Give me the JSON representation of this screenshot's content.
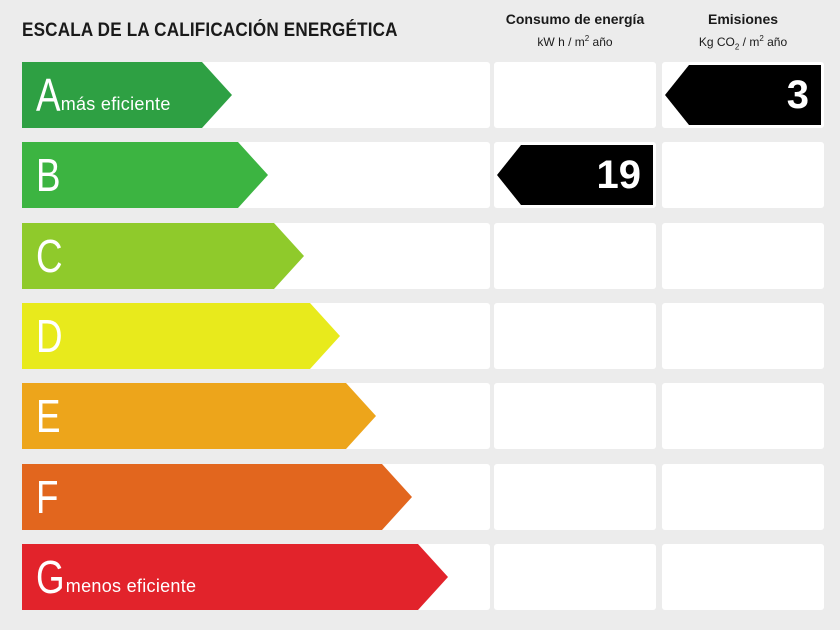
{
  "title": "ESCALA DE LA CALIFICACIÓN ENERGÉTICA",
  "columns": {
    "consumo": {
      "title": "Consumo de energía",
      "unit_pre": "kW h / m",
      "unit_sup": "2",
      "unit_post": " año"
    },
    "emisiones": {
      "title": "Emisiones",
      "unit_pre": "Kg CO",
      "unit_sub": "2",
      "unit_post": " / m",
      "unit_sup": "2",
      "unit_post2": " año"
    }
  },
  "ratings": [
    {
      "letter": "A",
      "note": "más eficiente",
      "color": "#2ea043"
    },
    {
      "letter": "B",
      "note": "",
      "color": "#3cb441"
    },
    {
      "letter": "C",
      "note": "",
      "color": "#8fca2b"
    },
    {
      "letter": "D",
      "note": "",
      "color": "#e8ea1c"
    },
    {
      "letter": "E",
      "note": "",
      "color": "#eda51b"
    },
    {
      "letter": "F",
      "note": "",
      "color": "#e2661e"
    },
    {
      "letter": "G",
      "note": "menos eficiente",
      "color": "#e2232b"
    }
  ],
  "consumo": {
    "value": "19",
    "rating": "B"
  },
  "emisiones": {
    "value": "3",
    "rating": "A"
  }
}
